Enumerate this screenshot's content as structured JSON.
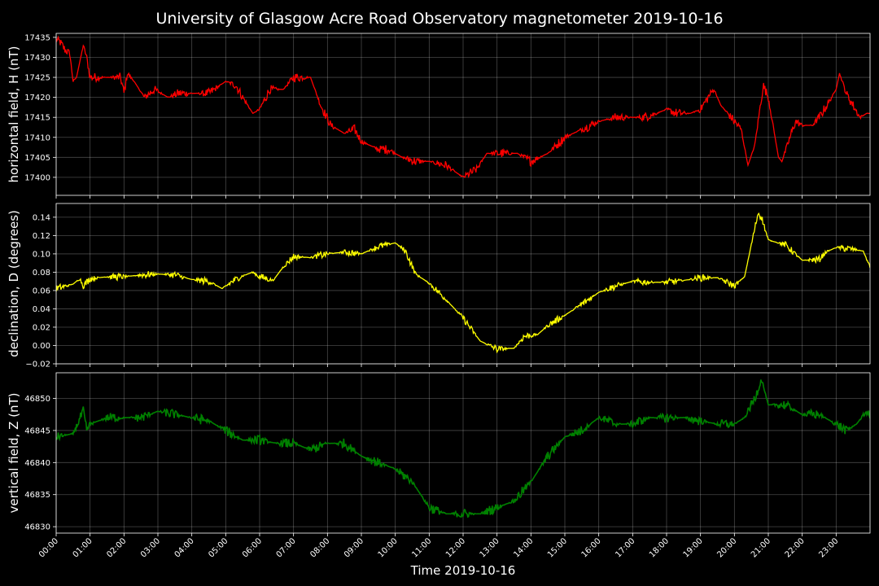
{
  "chart_data": {
    "type": "line",
    "title": "University of Glasgow Acre Road Observatory magnetometer 2019-10-16",
    "xlabel": "Time 2019-10-16",
    "x_tick_labels": [
      "00:00",
      "01:00",
      "02:00",
      "03:00",
      "04:00",
      "05:00",
      "06:00",
      "07:00",
      "08:00",
      "09:00",
      "10:00",
      "11:00",
      "12:00",
      "13:00",
      "14:00",
      "15:00",
      "16:00",
      "17:00",
      "18:00",
      "19:00",
      "20:00",
      "21:00",
      "22:00",
      "23:00"
    ],
    "xlim_hours": [
      0,
      24
    ],
    "grid": true,
    "panels": [
      {
        "name": "horizontal",
        "ylabel": "horizontal field, H (nT)",
        "color": "#ff0000",
        "ylim": [
          17395.5,
          17436
        ],
        "yticks": [
          17400,
          17405,
          17410,
          17415,
          17420,
          17425,
          17430,
          17435
        ],
        "ytick_labels": [
          "17400",
          "17405",
          "17410",
          "17415",
          "17420",
          "17425",
          "17430",
          "17435"
        ],
        "noise": 1.2,
        "points": [
          [
            0,
            17434.5
          ],
          [
            0.1,
            17434
          ],
          [
            0.25,
            17432
          ],
          [
            0.4,
            17431
          ],
          [
            0.5,
            17424
          ],
          [
            0.6,
            17425
          ],
          [
            0.8,
            17433
          ],
          [
            0.9,
            17430
          ],
          [
            1.0,
            17425
          ],
          [
            1.5,
            17425
          ],
          [
            1.9,
            17425
          ],
          [
            2.0,
            17421
          ],
          [
            2.1,
            17426
          ],
          [
            2.3,
            17424
          ],
          [
            2.6,
            17420
          ],
          [
            2.9,
            17422
          ],
          [
            3.1,
            17421
          ],
          [
            3.3,
            17420
          ],
          [
            3.6,
            17421
          ],
          [
            4.0,
            17421
          ],
          [
            4.5,
            17421
          ],
          [
            5.0,
            17424
          ],
          [
            5.3,
            17423
          ],
          [
            5.5,
            17420
          ],
          [
            5.8,
            17416
          ],
          [
            6.0,
            17417
          ],
          [
            6.3,
            17422
          ],
          [
            6.7,
            17422
          ],
          [
            7.0,
            17425
          ],
          [
            7.5,
            17425
          ],
          [
            7.8,
            17418
          ],
          [
            8.1,
            17413
          ],
          [
            8.5,
            17411
          ],
          [
            8.8,
            17412
          ],
          [
            9.0,
            17409
          ],
          [
            9.5,
            17407
          ],
          [
            9.8,
            17407
          ],
          [
            10.2,
            17405
          ],
          [
            10.6,
            17404
          ],
          [
            11.0,
            17404
          ],
          [
            11.5,
            17403
          ],
          [
            12.0,
            17400
          ],
          [
            12.4,
            17402
          ],
          [
            12.7,
            17406
          ],
          [
            13.1,
            17406
          ],
          [
            13.6,
            17406
          ],
          [
            14.0,
            17404
          ],
          [
            14.5,
            17406
          ],
          [
            15.0,
            17410
          ],
          [
            15.5,
            17412
          ],
          [
            16.0,
            17414
          ],
          [
            16.5,
            17415
          ],
          [
            17.0,
            17415
          ],
          [
            17.3,
            17415
          ],
          [
            17.7,
            17416
          ],
          [
            18.0,
            17417
          ],
          [
            18.3,
            17416
          ],
          [
            18.7,
            17416
          ],
          [
            19.0,
            17417
          ],
          [
            19.3,
            17421
          ],
          [
            19.4,
            17422
          ],
          [
            19.6,
            17418
          ],
          [
            20.0,
            17414
          ],
          [
            20.2,
            17412
          ],
          [
            20.4,
            17403
          ],
          [
            20.6,
            17408
          ],
          [
            20.8,
            17420
          ],
          [
            20.85,
            17423
          ],
          [
            21.0,
            17420
          ],
          [
            21.3,
            17405
          ],
          [
            21.4,
            17404
          ],
          [
            21.6,
            17409
          ],
          [
            21.8,
            17414
          ],
          [
            22.0,
            17413
          ],
          [
            22.3,
            17413
          ],
          [
            22.5,
            17415
          ],
          [
            22.8,
            17419
          ],
          [
            23.0,
            17422
          ],
          [
            23.1,
            17426
          ],
          [
            23.3,
            17421
          ],
          [
            23.5,
            17418
          ],
          [
            23.7,
            17415
          ],
          [
            23.9,
            17416
          ],
          [
            24.0,
            17416
          ]
        ]
      },
      {
        "name": "declination",
        "ylabel": "declination, D (degrees)",
        "color": "#ffff00",
        "ylim": [
          -0.02,
          0.155
        ],
        "yticks": [
          -0.02,
          0.0,
          0.02,
          0.04,
          0.06,
          0.08,
          0.1,
          0.12,
          0.14
        ],
        "ytick_labels": [
          "−0.02",
          "0.00",
          "0.02",
          "0.04",
          "0.06",
          "0.08",
          "0.10",
          "0.12",
          "0.14"
        ],
        "noise": 0.004,
        "points": [
          [
            0,
            0.062
          ],
          [
            0.5,
            0.067
          ],
          [
            0.7,
            0.073
          ],
          [
            0.8,
            0.065
          ],
          [
            1.0,
            0.073
          ],
          [
            1.5,
            0.075
          ],
          [
            2.0,
            0.075
          ],
          [
            2.5,
            0.077
          ],
          [
            3.0,
            0.078
          ],
          [
            3.5,
            0.077
          ],
          [
            4.0,
            0.072
          ],
          [
            4.5,
            0.07
          ],
          [
            4.9,
            0.062
          ],
          [
            5.2,
            0.07
          ],
          [
            5.5,
            0.076
          ],
          [
            5.8,
            0.08
          ],
          [
            6.0,
            0.075
          ],
          [
            6.4,
            0.071
          ],
          [
            6.7,
            0.086
          ],
          [
            7.0,
            0.097
          ],
          [
            7.5,
            0.096
          ],
          [
            8.0,
            0.1
          ],
          [
            8.5,
            0.102
          ],
          [
            9.0,
            0.1
          ],
          [
            9.5,
            0.108
          ],
          [
            10.0,
            0.112
          ],
          [
            10.3,
            0.103
          ],
          [
            10.6,
            0.078
          ],
          [
            11.0,
            0.068
          ],
          [
            11.5,
            0.05
          ],
          [
            12.0,
            0.03
          ],
          [
            12.5,
            0.005
          ],
          [
            13.0,
            -0.004
          ],
          [
            13.5,
            -0.003
          ],
          [
            13.8,
            0.01
          ],
          [
            14.2,
            0.012
          ],
          [
            14.5,
            0.022
          ],
          [
            15.0,
            0.033
          ],
          [
            15.5,
            0.045
          ],
          [
            16.0,
            0.058
          ],
          [
            16.5,
            0.065
          ],
          [
            17.0,
            0.07
          ],
          [
            17.5,
            0.069
          ],
          [
            18.0,
            0.069
          ],
          [
            18.5,
            0.071
          ],
          [
            19.0,
            0.074
          ],
          [
            19.5,
            0.074
          ],
          [
            20.0,
            0.065
          ],
          [
            20.3,
            0.075
          ],
          [
            20.5,
            0.11
          ],
          [
            20.7,
            0.145
          ],
          [
            20.8,
            0.14
          ],
          [
            21.0,
            0.115
          ],
          [
            21.5,
            0.11
          ],
          [
            22.0,
            0.093
          ],
          [
            22.5,
            0.094
          ],
          [
            22.7,
            0.102
          ],
          [
            23.0,
            0.107
          ],
          [
            23.5,
            0.105
          ],
          [
            23.8,
            0.103
          ],
          [
            24.0,
            0.085
          ]
        ]
      },
      {
        "name": "vertical",
        "ylabel": "vertical field, Z (nT)",
        "color": "#008000",
        "ylim": [
          46829,
          46854
        ],
        "yticks": [
          46830,
          46835,
          46840,
          46845,
          46850
        ],
        "ytick_labels": [
          "46830",
          "46835",
          "46840",
          "46845",
          "46850"
        ],
        "noise": 0.8,
        "points": [
          [
            0,
            46844
          ],
          [
            0.5,
            46844.5
          ],
          [
            0.8,
            46848
          ],
          [
            0.9,
            46845
          ],
          [
            1.0,
            46846
          ],
          [
            1.5,
            46847
          ],
          [
            2.0,
            46847
          ],
          [
            2.5,
            46847
          ],
          [
            3.0,
            46848
          ],
          [
            3.5,
            46847.5
          ],
          [
            4.0,
            46847
          ],
          [
            4.5,
            46846.5
          ],
          [
            5.0,
            46845
          ],
          [
            5.5,
            46843.5
          ],
          [
            6.0,
            46843.5
          ],
          [
            6.5,
            46843
          ],
          [
            7.0,
            46843
          ],
          [
            7.5,
            46842
          ],
          [
            8.0,
            46843
          ],
          [
            8.5,
            46843
          ],
          [
            9.0,
            46841
          ],
          [
            9.5,
            46840
          ],
          [
            10.0,
            46839
          ],
          [
            10.5,
            46837
          ],
          [
            11.0,
            46833
          ],
          [
            11.5,
            46832
          ],
          [
            12.0,
            46832
          ],
          [
            12.5,
            46832
          ],
          [
            13.0,
            46833
          ],
          [
            13.5,
            46834
          ],
          [
            14.0,
            46837
          ],
          [
            14.5,
            46841
          ],
          [
            15.0,
            46844
          ],
          [
            15.5,
            46845
          ],
          [
            16.0,
            46847
          ],
          [
            16.5,
            46846
          ],
          [
            17.0,
            46846
          ],
          [
            17.5,
            46847
          ],
          [
            18.0,
            46847
          ],
          [
            18.5,
            46847
          ],
          [
            19.0,
            46846.5
          ],
          [
            19.5,
            46846
          ],
          [
            20.0,
            46846
          ],
          [
            20.3,
            46847
          ],
          [
            20.6,
            46850
          ],
          [
            20.8,
            46853
          ],
          [
            21.0,
            46849
          ],
          [
            21.5,
            46849
          ],
          [
            22.0,
            46847.5
          ],
          [
            22.5,
            46847.5
          ],
          [
            23.0,
            46846
          ],
          [
            23.3,
            46845
          ],
          [
            23.6,
            46846
          ],
          [
            23.9,
            46848
          ],
          [
            24.0,
            46847
          ]
        ]
      }
    ]
  }
}
